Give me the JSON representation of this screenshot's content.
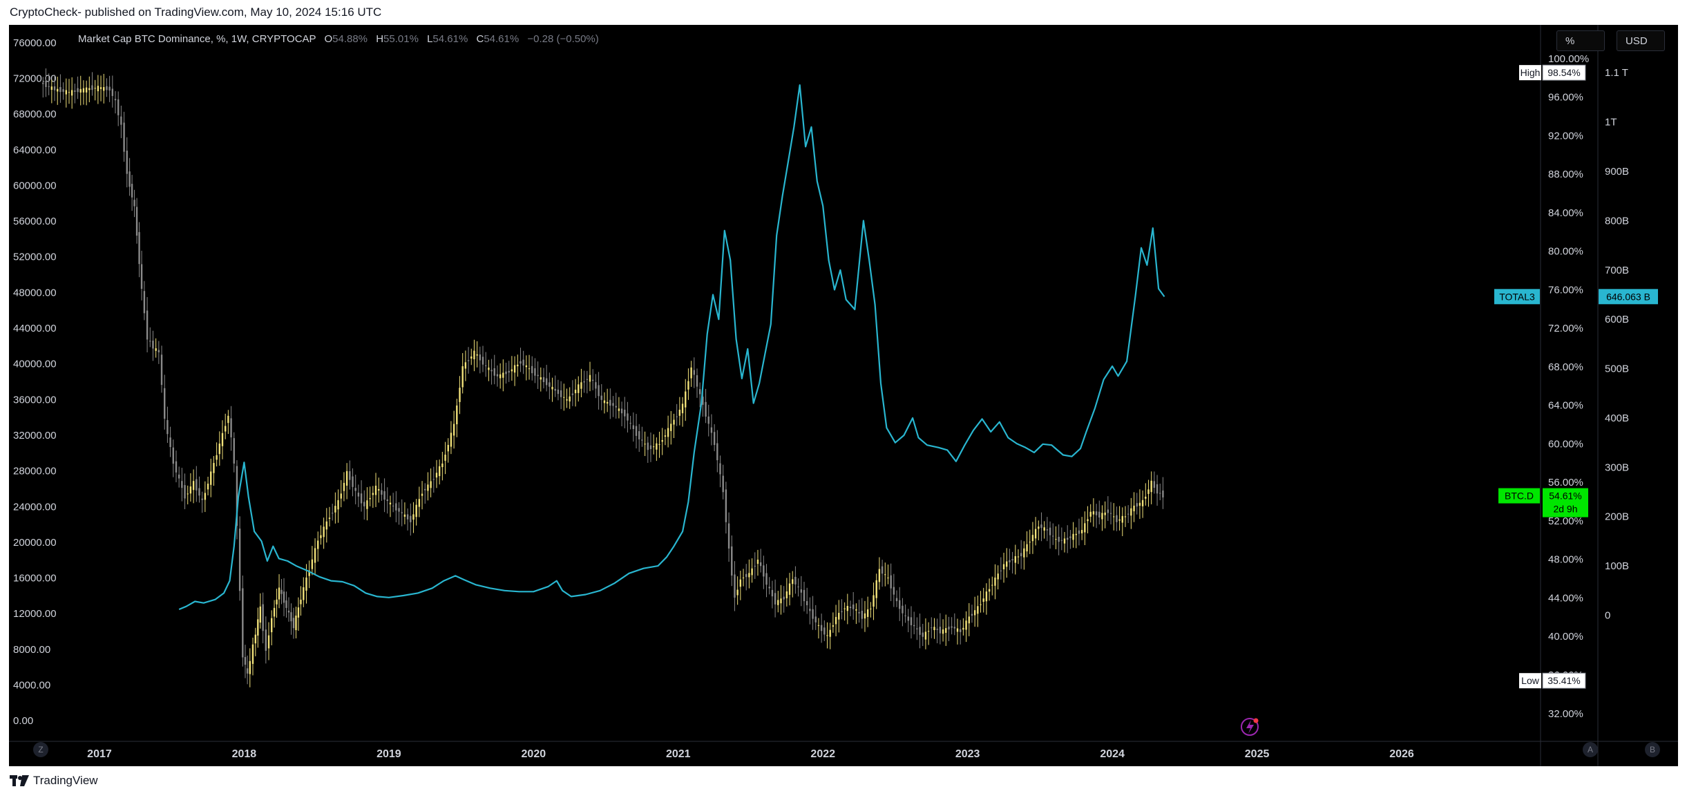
{
  "page": {
    "publisher_line": "CryptoCheck- published on TradingView.com, May 10, 2024 15:16 UTC",
    "footer_brand": "TradingView"
  },
  "legend": {
    "title": "Market Cap BTC Dominance, %, 1W, CRYPTOCAP",
    "o_label": "O",
    "o_value": "54.88%",
    "h_label": "H",
    "h_value": "55.01%",
    "l_label": "L",
    "l_value": "54.61%",
    "c_label": "C",
    "c_value": "54.61%",
    "change": "−0.28 (−0.50%)"
  },
  "scale_buttons": {
    "percent": "%",
    "usd": "USD"
  },
  "bottom_buttons": {
    "left": "Z",
    "mid": "A",
    "right": "B"
  },
  "colors": {
    "background": "#000000",
    "candle_up": "#f2e27a",
    "candle_down": "#8a8a8a",
    "total3_line": "#29b6d0",
    "btcd_badge": "#00e600",
    "axis_text": "#d1d4dc"
  },
  "chart_data": {
    "type": "line",
    "title": "Market Cap BTC Dominance, %, 1W, CRYPTOCAP",
    "x_ticks": [
      "2017",
      "2018",
      "2019",
      "2020",
      "2021",
      "2022",
      "2023",
      "2024",
      "2025",
      "2026"
    ],
    "x_range": [
      2016.58,
      2026.95
    ],
    "left_axis": {
      "ticks": [
        "76000.00",
        "72000.00",
        "68000.00",
        "64000.00",
        "60000.00",
        "56000.00",
        "52000.00",
        "48000.00",
        "44000.00",
        "40000.00",
        "36000.00",
        "32000.00",
        "28000.00",
        "24000.00",
        "20000.00",
        "16000.00",
        "12000.00",
        "8000.00",
        "4000.00",
        "0.00"
      ],
      "range": [
        -2000,
        78000
      ]
    },
    "percent_axis": {
      "ticks": [
        "100.00%",
        "96.00%",
        "92.00%",
        "88.00%",
        "84.00%",
        "80.00%",
        "76.00%",
        "72.00%",
        "68.00%",
        "64.00%",
        "60.00%",
        "56.00%",
        "52.00%",
        "48.00%",
        "44.00%",
        "40.00%",
        "36.00%",
        "32.00%"
      ],
      "range": [
        29.4,
        103.5
      ]
    },
    "usd_axis": {
      "ticks": [
        "1.1 T",
        "1T",
        "900B",
        "800B",
        "700B",
        "600B",
        "500B",
        "400B",
        "300B",
        "200B",
        "100B",
        "0"
      ],
      "values_billions": [
        1100,
        1000,
        900,
        800,
        700,
        600,
        500,
        400,
        300,
        200,
        100,
        0
      ],
      "range_billions": [
        -250,
        1197
      ]
    },
    "markers": {
      "high_label": "High",
      "high_value": "98.54%",
      "low_label": "Low",
      "low_value": "35.41%",
      "total3_label": "TOTAL3",
      "total3_value": "646.063 B",
      "btcd_label": "BTC.D",
      "btcd_value": "54.61%",
      "btcd_countdown": "2d 9h"
    },
    "series": [
      {
        "name": "BTC Dominance (%)",
        "style": "candles",
        "points": [
          [
            2016.6,
            97.5
          ],
          [
            2016.7,
            96.8
          ],
          [
            2016.8,
            96.5
          ],
          [
            2016.9,
            96.8
          ],
          [
            2017.0,
            97.0
          ],
          [
            2017.08,
            96.8
          ],
          [
            2017.12,
            95.5
          ],
          [
            2017.16,
            93.0
          ],
          [
            2017.2,
            88.0
          ],
          [
            2017.25,
            84.5
          ],
          [
            2017.3,
            76.0
          ],
          [
            2017.34,
            71.0
          ],
          [
            2017.38,
            70.0
          ],
          [
            2017.42,
            69.5
          ],
          [
            2017.46,
            62.5
          ],
          [
            2017.52,
            58.0
          ],
          [
            2017.6,
            54.5
          ],
          [
            2017.66,
            56.0
          ],
          [
            2017.72,
            54.0
          ],
          [
            2017.78,
            57.0
          ],
          [
            2017.84,
            60.0
          ],
          [
            2017.9,
            63.0
          ],
          [
            2017.94,
            58.0
          ],
          [
            2018.0,
            38.0
          ],
          [
            2018.03,
            36.0
          ],
          [
            2018.07,
            39.0
          ],
          [
            2018.12,
            43.0
          ],
          [
            2018.16,
            38.5
          ],
          [
            2018.2,
            42.0
          ],
          [
            2018.25,
            45.0
          ],
          [
            2018.3,
            43.0
          ],
          [
            2018.35,
            41.0
          ],
          [
            2018.4,
            44.0
          ],
          [
            2018.46,
            47.0
          ],
          [
            2018.52,
            50.0
          ],
          [
            2018.6,
            52.5
          ],
          [
            2018.66,
            54.0
          ],
          [
            2018.72,
            57.0
          ],
          [
            2018.78,
            55.0
          ],
          [
            2018.84,
            53.5
          ],
          [
            2018.92,
            55.5
          ],
          [
            2019.0,
            54.0
          ],
          [
            2019.08,
            53.0
          ],
          [
            2019.16,
            52.0
          ],
          [
            2019.24,
            55.0
          ],
          [
            2019.3,
            56.0
          ],
          [
            2019.38,
            58.0
          ],
          [
            2019.46,
            62.0
          ],
          [
            2019.52,
            68.0
          ],
          [
            2019.6,
            69.5
          ],
          [
            2019.68,
            68.0
          ],
          [
            2019.76,
            67.0
          ],
          [
            2019.84,
            67.5
          ],
          [
            2019.92,
            68.5
          ],
          [
            2020.0,
            67.5
          ],
          [
            2020.08,
            66.5
          ],
          [
            2020.16,
            65.5
          ],
          [
            2020.24,
            64.5
          ],
          [
            2020.32,
            66.0
          ],
          [
            2020.4,
            67.0
          ],
          [
            2020.48,
            64.5
          ],
          [
            2020.56,
            64.0
          ],
          [
            2020.64,
            63.0
          ],
          [
            2020.72,
            61.0
          ],
          [
            2020.8,
            59.5
          ],
          [
            2020.88,
            60.0
          ],
          [
            2020.96,
            62.0
          ],
          [
            2021.04,
            64.0
          ],
          [
            2021.1,
            68.0
          ],
          [
            2021.14,
            66.0
          ],
          [
            2021.2,
            63.0
          ],
          [
            2021.26,
            60.0
          ],
          [
            2021.32,
            55.0
          ],
          [
            2021.36,
            49.0
          ],
          [
            2021.4,
            44.0
          ],
          [
            2021.44,
            46.0
          ],
          [
            2021.5,
            46.5
          ],
          [
            2021.56,
            48.0
          ],
          [
            2021.62,
            45.5
          ],
          [
            2021.68,
            43.5
          ],
          [
            2021.74,
            44.0
          ],
          [
            2021.8,
            46.0
          ],
          [
            2021.86,
            44.5
          ],
          [
            2021.92,
            42.5
          ],
          [
            2021.98,
            41.0
          ],
          [
            2022.04,
            40.0
          ],
          [
            2022.1,
            42.0
          ],
          [
            2022.16,
            43.0
          ],
          [
            2022.22,
            43.0
          ],
          [
            2022.28,
            42.0
          ],
          [
            2022.34,
            43.0
          ],
          [
            2022.4,
            47.0
          ],
          [
            2022.46,
            46.0
          ],
          [
            2022.52,
            43.5
          ],
          [
            2022.58,
            42.0
          ],
          [
            2022.64,
            41.0
          ],
          [
            2022.7,
            40.0
          ],
          [
            2022.76,
            41.0
          ],
          [
            2022.82,
            40.5
          ],
          [
            2022.9,
            41.0
          ],
          [
            2022.96,
            40.5
          ],
          [
            2023.02,
            42.0
          ],
          [
            2023.08,
            43.0
          ],
          [
            2023.14,
            44.5
          ],
          [
            2023.2,
            46.0
          ],
          [
            2023.26,
            47.5
          ],
          [
            2023.32,
            48.0
          ],
          [
            2023.38,
            48.5
          ],
          [
            2023.44,
            50.0
          ],
          [
            2023.5,
            51.5
          ],
          [
            2023.56,
            51.0
          ],
          [
            2023.62,
            50.0
          ],
          [
            2023.68,
            50.0
          ],
          [
            2023.74,
            50.5
          ],
          [
            2023.8,
            51.0
          ],
          [
            2023.86,
            53.0
          ],
          [
            2023.92,
            52.5
          ],
          [
            2023.98,
            53.0
          ],
          [
            2024.04,
            52.0
          ],
          [
            2024.1,
            52.5
          ],
          [
            2024.16,
            53.5
          ],
          [
            2024.22,
            54.0
          ],
          [
            2024.28,
            56.0
          ],
          [
            2024.32,
            55.0
          ],
          [
            2024.36,
            54.61
          ]
        ]
      },
      {
        "name": "TOTAL3 (USD billions)",
        "style": "line",
        "points": [
          [
            2017.55,
            12
          ],
          [
            2017.6,
            18
          ],
          [
            2017.66,
            28
          ],
          [
            2017.72,
            25
          ],
          [
            2017.8,
            32
          ],
          [
            2017.86,
            45
          ],
          [
            2017.9,
            70
          ],
          [
            2017.93,
            140
          ],
          [
            2017.96,
            240
          ],
          [
            2018.0,
            310
          ],
          [
            2018.03,
            240
          ],
          [
            2018.07,
            170
          ],
          [
            2018.12,
            150
          ],
          [
            2018.16,
            110
          ],
          [
            2018.2,
            140
          ],
          [
            2018.24,
            115
          ],
          [
            2018.3,
            110
          ],
          [
            2018.36,
            100
          ],
          [
            2018.44,
            90
          ],
          [
            2018.52,
            78
          ],
          [
            2018.6,
            70
          ],
          [
            2018.68,
            68
          ],
          [
            2018.76,
            60
          ],
          [
            2018.84,
            45
          ],
          [
            2018.92,
            38
          ],
          [
            2019.0,
            36
          ],
          [
            2019.1,
            40
          ],
          [
            2019.2,
            45
          ],
          [
            2019.3,
            55
          ],
          [
            2019.38,
            70
          ],
          [
            2019.46,
            80
          ],
          [
            2019.52,
            72
          ],
          [
            2019.6,
            62
          ],
          [
            2019.7,
            55
          ],
          [
            2019.8,
            50
          ],
          [
            2019.9,
            48
          ],
          [
            2020.0,
            48
          ],
          [
            2020.1,
            58
          ],
          [
            2020.16,
            70
          ],
          [
            2020.2,
            50
          ],
          [
            2020.26,
            38
          ],
          [
            2020.36,
            42
          ],
          [
            2020.46,
            50
          ],
          [
            2020.56,
            65
          ],
          [
            2020.66,
            85
          ],
          [
            2020.76,
            95
          ],
          [
            2020.86,
            100
          ],
          [
            2020.92,
            118
          ],
          [
            2020.97,
            140
          ],
          [
            2021.03,
            170
          ],
          [
            2021.07,
            230
          ],
          [
            2021.11,
            330
          ],
          [
            2021.16,
            430
          ],
          [
            2021.2,
            570
          ],
          [
            2021.24,
            650
          ],
          [
            2021.28,
            600
          ],
          [
            2021.32,
            780
          ],
          [
            2021.36,
            720
          ],
          [
            2021.4,
            560
          ],
          [
            2021.44,
            480
          ],
          [
            2021.48,
            540
          ],
          [
            2021.52,
            430
          ],
          [
            2021.56,
            470
          ],
          [
            2021.6,
            530
          ],
          [
            2021.64,
            590
          ],
          [
            2021.68,
            770
          ],
          [
            2021.72,
            850
          ],
          [
            2021.76,
            920
          ],
          [
            2021.8,
            990
          ],
          [
            2021.84,
            1075
          ],
          [
            2021.88,
            950
          ],
          [
            2021.92,
            990
          ],
          [
            2021.96,
            880
          ],
          [
            2022.0,
            830
          ],
          [
            2022.04,
            720
          ],
          [
            2022.08,
            660
          ],
          [
            2022.12,
            700
          ],
          [
            2022.16,
            640
          ],
          [
            2022.22,
            620
          ],
          [
            2022.28,
            800
          ],
          [
            2022.32,
            720
          ],
          [
            2022.36,
            630
          ],
          [
            2022.4,
            470
          ],
          [
            2022.44,
            380
          ],
          [
            2022.5,
            350
          ],
          [
            2022.56,
            365
          ],
          [
            2022.62,
            400
          ],
          [
            2022.66,
            360
          ],
          [
            2022.72,
            345
          ],
          [
            2022.8,
            340
          ],
          [
            2022.86,
            335
          ],
          [
            2022.92,
            312
          ],
          [
            2022.98,
            345
          ],
          [
            2023.04,
            375
          ],
          [
            2023.1,
            398
          ],
          [
            2023.16,
            372
          ],
          [
            2023.22,
            392
          ],
          [
            2023.28,
            360
          ],
          [
            2023.34,
            348
          ],
          [
            2023.4,
            340
          ],
          [
            2023.46,
            330
          ],
          [
            2023.52,
            347
          ],
          [
            2023.58,
            345
          ],
          [
            2023.66,
            325
          ],
          [
            2023.72,
            322
          ],
          [
            2023.78,
            338
          ],
          [
            2023.82,
            372
          ],
          [
            2023.88,
            420
          ],
          [
            2023.94,
            478
          ],
          [
            2024.0,
            505
          ],
          [
            2024.04,
            485
          ],
          [
            2024.1,
            515
          ],
          [
            2024.16,
            648
          ],
          [
            2024.2,
            745
          ],
          [
            2024.24,
            710
          ],
          [
            2024.28,
            785
          ],
          [
            2024.32,
            662
          ],
          [
            2024.36,
            646
          ]
        ]
      }
    ]
  }
}
